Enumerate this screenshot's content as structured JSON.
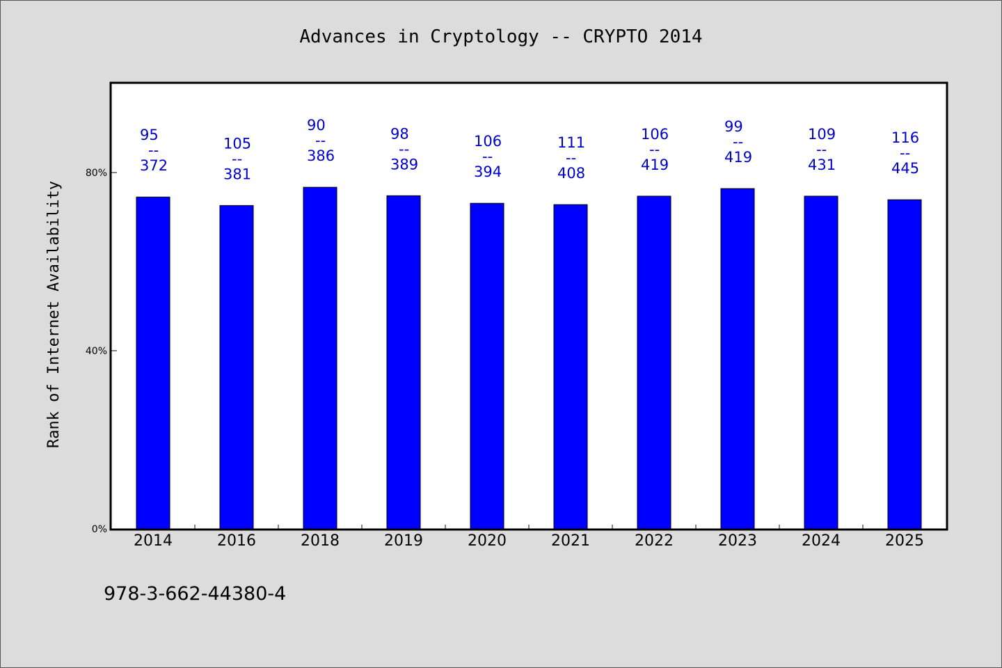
{
  "chart_data": {
    "type": "bar",
    "title": "Advances in Cryptology -- CRYPTO 2014",
    "xlabel": "",
    "ylabel": "Rank of Internet Availability",
    "categories": [
      "2014",
      "2016",
      "2018",
      "2019",
      "2020",
      "2021",
      "2022",
      "2023",
      "2024",
      "2025"
    ],
    "values": [
      74.5,
      72.6,
      76.7,
      74.8,
      73.1,
      72.8,
      74.7,
      76.4,
      74.7,
      73.9
    ],
    "labels": [
      [
        "95",
        "--",
        "372"
      ],
      [
        "105",
        "--",
        "381"
      ],
      [
        "90",
        "--",
        "386"
      ],
      [
        "98",
        "--",
        "389"
      ],
      [
        "106",
        "--",
        "394"
      ],
      [
        "111",
        "--",
        "408"
      ],
      [
        "106",
        "--",
        "419"
      ],
      [
        "99",
        "--",
        "419"
      ],
      [
        "109",
        "--",
        "431"
      ],
      [
        "116",
        "--",
        "445"
      ]
    ],
    "ylim": [
      0,
      100
    ],
    "yticks": [
      {
        "value": 0,
        "label": "0%"
      },
      {
        "value": 40,
        "label": "40%"
      },
      {
        "value": 80,
        "label": "80%"
      }
    ],
    "grid": false,
    "bar_color": "#0000ff",
    "label_color": "#0000cc",
    "footer": "978-3-662-44380-4"
  }
}
